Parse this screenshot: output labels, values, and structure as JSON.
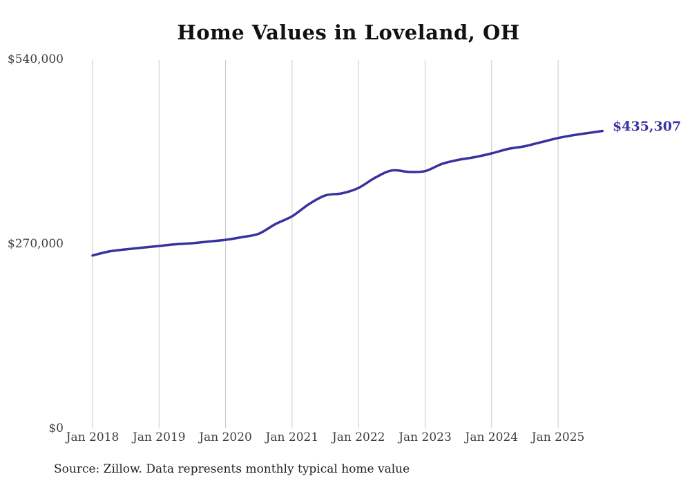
{
  "title": "Home Values in Loveland, OH",
  "source_note": "Source: Zillow. Data represents monthly typical home value",
  "end_value_label": "$435,307",
  "colors": {
    "line": "#38329e",
    "grid": "#c9c9c9",
    "title_text": "#111111",
    "axis_text": "#3f3f3f",
    "end_label_text": "#38329e",
    "background": "#ffffff"
  },
  "chart_data": {
    "type": "line",
    "title": "Home Values in Loveland, OH",
    "xlabel": "",
    "ylabel": "",
    "ylim": [
      0,
      540000
    ],
    "grid": "vertical-only",
    "legend_position": "none",
    "y_ticks": [
      {
        "label": "$0",
        "value": 0
      },
      {
        "label": "$270,000",
        "value": 270000
      },
      {
        "label": "$540,000",
        "value": 540000
      }
    ],
    "x_ticks": [
      {
        "label": "Jan 2018",
        "date": "2018-01"
      },
      {
        "label": "Jan 2019",
        "date": "2019-01"
      },
      {
        "label": "Jan 2020",
        "date": "2020-01"
      },
      {
        "label": "Jan 2021",
        "date": "2021-01"
      },
      {
        "label": "Jan 2022",
        "date": "2022-01"
      },
      {
        "label": "Jan 2023",
        "date": "2023-01"
      },
      {
        "label": "Jan 2024",
        "date": "2024-01"
      },
      {
        "label": "Jan 2025",
        "date": "2025-01"
      }
    ],
    "series": [
      {
        "name": "Monthly typical home value",
        "final_value": 435307,
        "final_value_label": "$435,307",
        "points": [
          {
            "date": "2018-01",
            "value": 253000
          },
          {
            "date": "2018-04",
            "value": 259000
          },
          {
            "date": "2018-07",
            "value": 262000
          },
          {
            "date": "2018-10",
            "value": 264500
          },
          {
            "date": "2019-01",
            "value": 267000
          },
          {
            "date": "2019-04",
            "value": 269500
          },
          {
            "date": "2019-07",
            "value": 271000
          },
          {
            "date": "2019-10",
            "value": 273500
          },
          {
            "date": "2020-01",
            "value": 276000
          },
          {
            "date": "2020-04",
            "value": 280000
          },
          {
            "date": "2020-07",
            "value": 285000
          },
          {
            "date": "2020-10",
            "value": 299000
          },
          {
            "date": "2021-01",
            "value": 310500
          },
          {
            "date": "2021-04",
            "value": 328000
          },
          {
            "date": "2021-07",
            "value": 341000
          },
          {
            "date": "2021-10",
            "value": 344000
          },
          {
            "date": "2022-01",
            "value": 352000
          },
          {
            "date": "2022-04",
            "value": 367000
          },
          {
            "date": "2022-07",
            "value": 377500
          },
          {
            "date": "2022-10",
            "value": 375500
          },
          {
            "date": "2023-01",
            "value": 376500
          },
          {
            "date": "2023-04",
            "value": 387000
          },
          {
            "date": "2023-07",
            "value": 393000
          },
          {
            "date": "2023-10",
            "value": 397000
          },
          {
            "date": "2024-01",
            "value": 402500
          },
          {
            "date": "2024-04",
            "value": 409000
          },
          {
            "date": "2024-07",
            "value": 413000
          },
          {
            "date": "2024-10",
            "value": 419000
          },
          {
            "date": "2025-01",
            "value": 425000
          },
          {
            "date": "2025-04",
            "value": 429500
          },
          {
            "date": "2025-07",
            "value": 433000
          },
          {
            "date": "2025-09",
            "value": 435307
          }
        ]
      }
    ]
  }
}
